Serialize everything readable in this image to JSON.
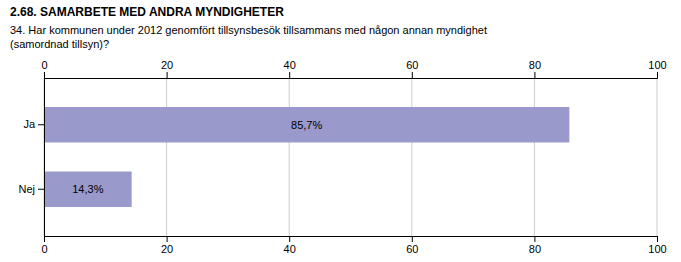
{
  "chart_data": {
    "type": "bar",
    "orientation": "horizontal",
    "title": "2.68. SAMARBETE MED ANDRA MYNDIGHETER",
    "subtitle": "34. Har kommunen under 2012 genomfört tillsynsbesök tillsammans med någon annan myndighet\n(samordnad tillsyn)?",
    "categories": [
      "Ja",
      "Nej"
    ],
    "values": [
      85.7,
      14.3
    ],
    "value_labels": [
      "85,7%",
      "14,3%"
    ],
    "data_labels": true,
    "color": "#9999cc",
    "xlim": [
      0,
      100
    ],
    "xticks": [
      0,
      20,
      40,
      60,
      80,
      100
    ],
    "grid": true
  }
}
